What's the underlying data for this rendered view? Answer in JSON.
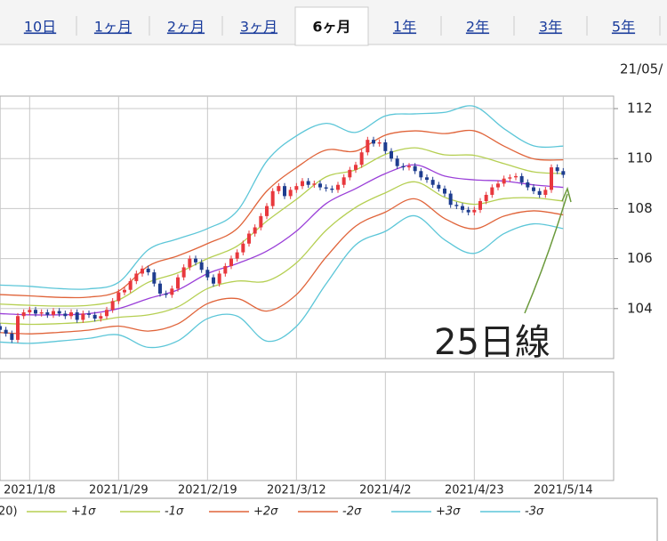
{
  "tabs": [
    "10日",
    "1ヶ月",
    "2ヶ月",
    "3ヶ月",
    "6ヶ月",
    "1年",
    "2年",
    "3年",
    "5年"
  ],
  "active_tab": 4,
  "date_label": "21/05/",
  "chart_data": {
    "type": "candlestick",
    "x": [
      "2020/12/31",
      "2021/1/4",
      "2021/1/5",
      "2021/1/6",
      "2021/1/7",
      "2021/1/8",
      "2021/1/11",
      "2021/1/12",
      "2021/1/13",
      "2021/1/14",
      "2021/1/15",
      "2021/1/18",
      "2021/1/19",
      "2021/1/20",
      "2021/1/21",
      "2021/1/22",
      "2021/1/25",
      "2021/1/26",
      "2021/1/27",
      "2021/1/28",
      "2021/1/29",
      "2021/2/1",
      "2021/2/2",
      "2021/2/3",
      "2021/2/4",
      "2021/2/5",
      "2021/2/8",
      "2021/2/9",
      "2021/2/10",
      "2021/2/11",
      "2021/2/12",
      "2021/2/15",
      "2021/2/16",
      "2021/2/17",
      "2021/2/18",
      "2021/2/19",
      "2021/2/22",
      "2021/2/23",
      "2021/2/24",
      "2021/2/25",
      "2021/2/26",
      "2021/3/1",
      "2021/3/2",
      "2021/3/3",
      "2021/3/4",
      "2021/3/5",
      "2021/3/8",
      "2021/3/9",
      "2021/3/10",
      "2021/3/11",
      "2021/3/12",
      "2021/3/15",
      "2021/3/16",
      "2021/3/17",
      "2021/3/18",
      "2021/3/19",
      "2021/3/22",
      "2021/3/23",
      "2021/3/24",
      "2021/3/25",
      "2021/3/26",
      "2021/3/29",
      "2021/3/30",
      "2021/3/31",
      "2021/4/1",
      "2021/4/2",
      "2021/4/5",
      "2021/4/6",
      "2021/4/7",
      "2021/4/8",
      "2021/4/9",
      "2021/4/12",
      "2021/4/13",
      "2021/4/14",
      "2021/4/15",
      "2021/4/16",
      "2021/4/19",
      "2021/4/20",
      "2021/4/21",
      "2021/4/22",
      "2021/4/23",
      "2021/4/26",
      "2021/4/27",
      "2021/4/28",
      "2021/4/29",
      "2021/4/30",
      "2021/5/3",
      "2021/5/4",
      "2021/5/5",
      "2021/5/6",
      "2021/5/7",
      "2021/5/10",
      "2021/5/11",
      "2021/5/12",
      "2021/5/13",
      "2021/5/14"
    ],
    "open": [
      103.3,
      103.15,
      103.0,
      102.75,
      103.7,
      103.85,
      103.95,
      103.8,
      103.85,
      103.75,
      103.9,
      103.8,
      103.7,
      103.85,
      103.55,
      103.8,
      103.75,
      103.6,
      103.7,
      103.95,
      104.3,
      104.65,
      104.75,
      105.1,
      105.4,
      105.6,
      105.45,
      105.0,
      104.6,
      104.55,
      104.8,
      105.25,
      105.65,
      106.0,
      105.85,
      105.55,
      105.25,
      105.0,
      105.4,
      105.7,
      106.0,
      106.25,
      106.6,
      107.0,
      107.25,
      107.7,
      108.1,
      108.7,
      108.9,
      108.5,
      108.75,
      108.9,
      109.1,
      108.95,
      109.0,
      108.85,
      108.8,
      108.75,
      108.95,
      109.25,
      109.55,
      109.75,
      110.25,
      110.75,
      110.6,
      110.65,
      110.3,
      110.0,
      109.7,
      109.65,
      109.7,
      109.5,
      109.25,
      109.15,
      108.95,
      108.8,
      108.6,
      108.15,
      108.1,
      107.95,
      107.85,
      107.95,
      108.3,
      108.55,
      108.85,
      109.0,
      109.2,
      109.25,
      109.3,
      109.05,
      108.85,
      108.7,
      108.55,
      108.75,
      109.65,
      109.5
    ],
    "high": [
      103.42,
      103.27,
      103.12,
      103.82,
      103.97,
      104.07,
      104.07,
      103.97,
      103.97,
      104.02,
      104.02,
      103.92,
      103.97,
      103.97,
      103.92,
      103.92,
      103.87,
      103.82,
      104.07,
      104.42,
      104.77,
      104.87,
      105.22,
      105.52,
      105.72,
      105.72,
      105.57,
      105.12,
      104.72,
      104.92,
      105.37,
      105.77,
      106.12,
      106.12,
      105.97,
      105.67,
      105.37,
      105.52,
      105.82,
      106.12,
      106.37,
      106.72,
      107.12,
      107.37,
      107.82,
      108.22,
      108.82,
      109.02,
      109.02,
      108.87,
      109.02,
      109.22,
      109.22,
      109.12,
      109.12,
      108.97,
      108.92,
      109.07,
      109.37,
      109.67,
      109.87,
      110.37,
      110.87,
      110.87,
      110.77,
      110.77,
      110.42,
      110.12,
      109.82,
      109.82,
      109.82,
      109.62,
      109.37,
      109.27,
      109.07,
      108.92,
      108.72,
      108.27,
      108.22,
      108.07,
      108.07,
      108.42,
      108.67,
      108.97,
      109.12,
      109.32,
      109.37,
      109.42,
      109.42,
      109.17,
      108.97,
      108.82,
      108.87,
      109.77,
      109.77,
      109.62
    ],
    "low": [
      103.03,
      102.88,
      102.63,
      102.63,
      103.58,
      103.73,
      103.68,
      103.68,
      103.63,
      103.63,
      103.68,
      103.58,
      103.58,
      103.43,
      103.43,
      103.63,
      103.48,
      103.48,
      103.58,
      103.83,
      104.18,
      104.53,
      104.63,
      104.98,
      105.28,
      105.33,
      104.88,
      104.48,
      104.43,
      104.43,
      104.68,
      105.13,
      105.53,
      105.73,
      105.43,
      105.13,
      104.88,
      104.88,
      105.28,
      105.58,
      105.88,
      106.13,
      106.48,
      106.88,
      107.13,
      107.58,
      107.98,
      108.58,
      108.38,
      108.38,
      108.63,
      108.78,
      108.83,
      108.83,
      108.73,
      108.68,
      108.63,
      108.63,
      108.83,
      109.13,
      109.43,
      109.63,
      110.13,
      110.48,
      110.48,
      110.18,
      109.88,
      109.58,
      109.53,
      109.53,
      109.38,
      109.13,
      109.03,
      108.83,
      108.68,
      108.48,
      108.03,
      107.98,
      107.83,
      107.73,
      107.73,
      107.83,
      108.18,
      108.43,
      108.73,
      108.88,
      109.08,
      109.13,
      108.93,
      108.73,
      108.58,
      108.43,
      108.43,
      108.63,
      109.38,
      109.23
    ],
    "close": [
      103.15,
      103.0,
      102.75,
      103.7,
      103.85,
      103.95,
      103.8,
      103.85,
      103.75,
      103.9,
      103.8,
      103.7,
      103.85,
      103.55,
      103.8,
      103.75,
      103.6,
      103.7,
      103.95,
      104.3,
      104.65,
      104.75,
      105.1,
      105.4,
      105.6,
      105.45,
      105.0,
      104.6,
      104.55,
      104.8,
      105.25,
      105.65,
      106.0,
      105.85,
      105.55,
      105.25,
      105.0,
      105.4,
      105.7,
      106.0,
      106.25,
      106.6,
      107.0,
      107.25,
      107.7,
      108.1,
      108.7,
      108.9,
      108.5,
      108.75,
      108.9,
      109.1,
      108.95,
      109.0,
      108.85,
      108.8,
      108.75,
      108.95,
      109.25,
      109.55,
      109.75,
      110.25,
      110.75,
      110.6,
      110.65,
      110.3,
      110.0,
      109.7,
      109.65,
      109.7,
      109.5,
      109.25,
      109.15,
      108.95,
      108.8,
      108.6,
      108.15,
      108.1,
      107.95,
      107.85,
      107.95,
      108.3,
      108.55,
      108.85,
      109.0,
      109.2,
      109.25,
      109.3,
      109.05,
      108.85,
      108.7,
      108.55,
      108.75,
      109.65,
      109.5,
      109.35
    ],
    "up_color": "#e8383d",
    "down_color": "#1e3d8f",
    "series": [
      {
        "name": "20)",
        "type": "line",
        "color": "#9a3fd8",
        "x": [
          "2020/12/31",
          "2021/1/8",
          "2021/1/15",
          "2021/1/22",
          "2021/1/29",
          "2021/2/5",
          "2021/2/12",
          "2021/2/19",
          "2021/2/26",
          "2021/3/5",
          "2021/3/12",
          "2021/3/19",
          "2021/3/26",
          "2021/4/2",
          "2021/4/9",
          "2021/4/16",
          "2021/4/23",
          "2021/4/30",
          "2021/5/7",
          "2021/5/14"
        ],
        "values": [
          103.8,
          103.75,
          103.75,
          103.8,
          104.0,
          104.4,
          104.75,
          105.4,
          105.8,
          106.3,
          107.1,
          108.2,
          108.8,
          109.4,
          109.75,
          109.3,
          109.15,
          109.1,
          108.95,
          108.85
        ]
      },
      {
        "name": "+1σ",
        "type": "line",
        "color": "#b5cf52",
        "x": [
          "2020/12/31",
          "2021/1/8",
          "2021/1/15",
          "2021/1/22",
          "2021/1/29",
          "2021/2/5",
          "2021/2/12",
          "2021/2/19",
          "2021/2/26",
          "2021/3/5",
          "2021/3/12",
          "2021/3/19",
          "2021/3/26",
          "2021/4/2",
          "2021/4/9",
          "2021/4/16",
          "2021/4/23",
          "2021/4/30",
          "2021/5/7",
          "2021/5/14"
        ],
        "values": [
          104.18,
          104.13,
          104.1,
          104.13,
          104.35,
          105.05,
          105.43,
          106.0,
          106.5,
          107.5,
          108.37,
          109.27,
          109.55,
          110.17,
          110.43,
          110.15,
          110.13,
          109.8,
          109.47,
          109.4
        ]
      },
      {
        "name": "-1σ",
        "type": "line",
        "color": "#b5cf52",
        "x": [
          "2020/12/31",
          "2021/1/8",
          "2021/1/15",
          "2021/1/22",
          "2021/1/29",
          "2021/2/5",
          "2021/2/12",
          "2021/2/19",
          "2021/2/26",
          "2021/3/5",
          "2021/3/12",
          "2021/3/19",
          "2021/3/26",
          "2021/4/2",
          "2021/4/9",
          "2021/4/16",
          "2021/4/23",
          "2021/4/30",
          "2021/5/7",
          "2021/5/14"
        ],
        "values": [
          103.42,
          103.37,
          103.4,
          103.47,
          103.65,
          103.75,
          104.07,
          104.8,
          105.1,
          105.1,
          105.83,
          107.13,
          108.05,
          108.63,
          109.07,
          108.45,
          108.17,
          108.4,
          108.43,
          108.3
        ]
      },
      {
        "name": "+2σ",
        "type": "line",
        "color": "#e0643a",
        "x": [
          "2020/12/31",
          "2021/1/8",
          "2021/1/15",
          "2021/1/22",
          "2021/1/29",
          "2021/2/5",
          "2021/2/12",
          "2021/2/19",
          "2021/2/26",
          "2021/3/5",
          "2021/3/12",
          "2021/3/19",
          "2021/3/26",
          "2021/4/2",
          "2021/4/9",
          "2021/4/16",
          "2021/4/23",
          "2021/4/30",
          "2021/5/7",
          "2021/5/14"
        ],
        "values": [
          104.56,
          104.51,
          104.45,
          104.46,
          104.7,
          105.7,
          106.11,
          106.6,
          107.2,
          108.7,
          109.64,
          110.34,
          110.3,
          110.94,
          111.11,
          111.0,
          111.11,
          110.5,
          109.99,
          109.95
        ]
      },
      {
        "name": "-2σ",
        "type": "line",
        "color": "#e0643a",
        "x": [
          "2020/12/31",
          "2021/1/8",
          "2021/1/15",
          "2021/1/22",
          "2021/1/29",
          "2021/2/5",
          "2021/2/12",
          "2021/2/19",
          "2021/2/26",
          "2021/3/5",
          "2021/3/12",
          "2021/3/19",
          "2021/3/26",
          "2021/4/2",
          "2021/4/9",
          "2021/4/16",
          "2021/4/23",
          "2021/4/30",
          "2021/5/7",
          "2021/5/14"
        ],
        "values": [
          103.04,
          102.99,
          103.05,
          103.14,
          103.3,
          103.1,
          103.39,
          104.2,
          104.4,
          103.9,
          104.56,
          106.06,
          107.3,
          107.86,
          108.39,
          107.6,
          107.19,
          107.7,
          107.91,
          107.75
        ]
      },
      {
        "name": "+3σ",
        "type": "line",
        "color": "#5cc6d8",
        "x": [
          "2020/12/31",
          "2021/1/8",
          "2021/1/15",
          "2021/1/22",
          "2021/1/29",
          "2021/2/5",
          "2021/2/12",
          "2021/2/19",
          "2021/2/26",
          "2021/3/5",
          "2021/3/12",
          "2021/3/19",
          "2021/3/26",
          "2021/4/2",
          "2021/4/9",
          "2021/4/16",
          "2021/4/23",
          "2021/4/30",
          "2021/5/7",
          "2021/5/14"
        ],
        "values": [
          104.94,
          104.89,
          104.8,
          104.79,
          105.05,
          106.35,
          106.79,
          107.2,
          107.9,
          109.9,
          110.91,
          111.41,
          111.05,
          111.71,
          111.79,
          111.85,
          112.09,
          111.2,
          110.51,
          110.5
        ]
      },
      {
        "name": "-3σ",
        "type": "line",
        "color": "#5cc6d8",
        "x": [
          "2020/12/31",
          "2021/1/8",
          "2021/1/15",
          "2021/1/22",
          "2021/1/29",
          "2021/2/5",
          "2021/2/12",
          "2021/2/19",
          "2021/2/26",
          "2021/3/5",
          "2021/3/12",
          "2021/3/19",
          "2021/3/26",
          "2021/4/2",
          "2021/4/9",
          "2021/4/16",
          "2021/4/23",
          "2021/4/30",
          "2021/5/7",
          "2021/5/14"
        ],
        "values": [
          102.66,
          102.61,
          102.7,
          102.81,
          102.95,
          102.45,
          102.71,
          103.6,
          103.7,
          102.7,
          103.29,
          104.99,
          106.55,
          107.09,
          107.71,
          106.75,
          106.21,
          107.0,
          107.39,
          107.2
        ]
      }
    ],
    "ylim": [
      102,
      112.5
    ],
    "yticks": [
      104,
      106,
      108,
      110,
      112
    ],
    "xticks": [
      "2021/1/8",
      "2021/1/29",
      "2021/2/19",
      "2021/3/12",
      "2021/4/2",
      "2021/4/23",
      "2021/5/14"
    ],
    "grid": true,
    "annotations": [
      {
        "text": "25日線",
        "color": "#6b9a3c"
      }
    ]
  }
}
